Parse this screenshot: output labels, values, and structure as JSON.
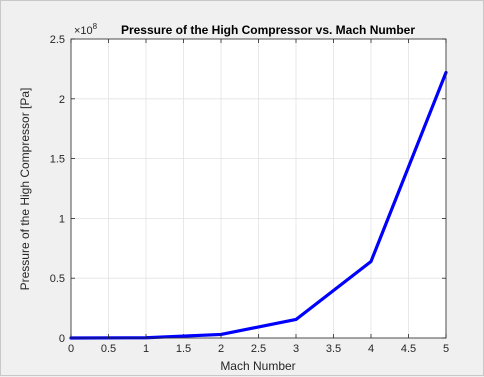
{
  "chart_data": {
    "type": "line",
    "title": "Pressure of the High Compressor vs. Mach Number",
    "xlabel": "Mach Number",
    "ylabel": "Pressure of the High Compressor [Pa]",
    "xlim": [
      0,
      5
    ],
    "ylim": [
      0,
      2.5
    ],
    "y_exponent_base": "×10",
    "y_exponent_power": "8",
    "grid": true,
    "x_ticks": [
      "0",
      "0.5",
      "1",
      "1.5",
      "2",
      "2.5",
      "3",
      "3.5",
      "4",
      "4.5",
      "5"
    ],
    "y_ticks": [
      "0",
      "0.5",
      "1",
      "1.5",
      "2",
      "2.5"
    ],
    "series": [
      {
        "color": "#0000ff",
        "x": [
          0,
          1,
          2,
          3,
          4,
          5
        ],
        "y": [
          0.0,
          0.002,
          0.03,
          0.155,
          0.64,
          2.22
        ]
      }
    ]
  }
}
